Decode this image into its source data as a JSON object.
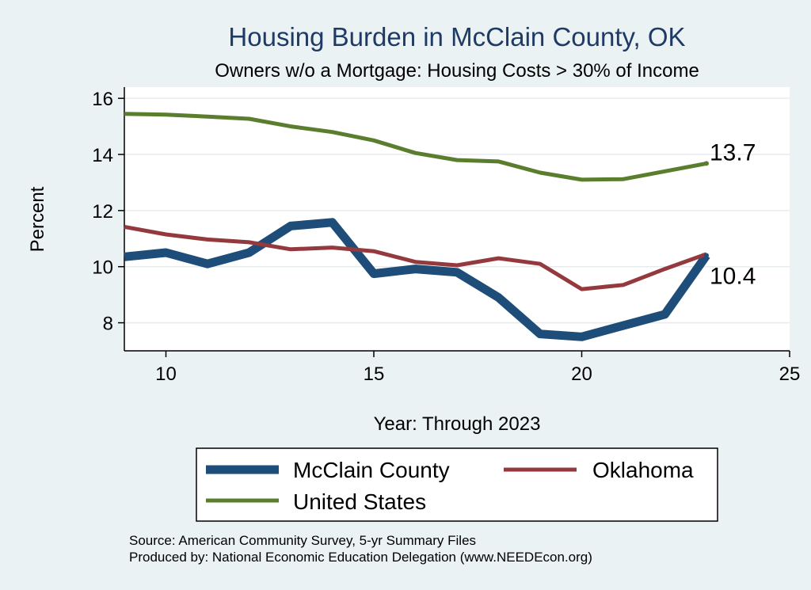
{
  "chart_data": {
    "type": "line",
    "title": "Housing Burden in McClain County, OK",
    "subtitle": "Owners w/o a Mortgage: Housing Costs > 30% of Income",
    "xlabel": "Year: Through 2023",
    "ylabel": "Percent",
    "xlim": [
      9,
      25
    ],
    "ylim": [
      7.0,
      16.4
    ],
    "xticks": [
      10,
      15,
      20,
      25
    ],
    "yticks": [
      8,
      10,
      12,
      14,
      16
    ],
    "x": [
      9,
      10,
      11,
      12,
      13,
      14,
      15,
      16,
      17,
      18,
      19,
      20,
      21,
      22,
      23
    ],
    "series": [
      {
        "name": "McClain County",
        "color": "#1d4d78",
        "values": [
          10.35,
          10.5,
          10.1,
          10.5,
          11.45,
          11.58,
          9.75,
          9.92,
          9.8,
          8.9,
          7.6,
          7.5,
          7.9,
          8.3,
          10.4
        ]
      },
      {
        "name": "Oklahoma",
        "color": "#943a3e",
        "values": [
          11.42,
          11.15,
          10.97,
          10.87,
          10.62,
          10.68,
          10.55,
          10.17,
          10.05,
          10.3,
          10.1,
          9.2,
          9.35,
          9.92,
          10.45
        ]
      },
      {
        "name": "United States",
        "color": "#5a7d2e",
        "values": [
          15.45,
          15.42,
          15.35,
          15.27,
          15.0,
          14.8,
          14.5,
          14.05,
          13.8,
          13.75,
          13.35,
          13.1,
          13.12,
          13.4,
          13.68
        ]
      }
    ],
    "end_labels": [
      {
        "series": "United States",
        "text": "13.7"
      },
      {
        "series": "McClain County",
        "text": "10.4"
      }
    ],
    "legend": [
      "McClain County",
      "Oklahoma",
      "United States"
    ]
  },
  "source": {
    "line1": "Source: American Community Survey, 5-yr Summary Files",
    "line2": "Produced by: National Economic Education Delegation (www.NEEDEcon.org)"
  }
}
